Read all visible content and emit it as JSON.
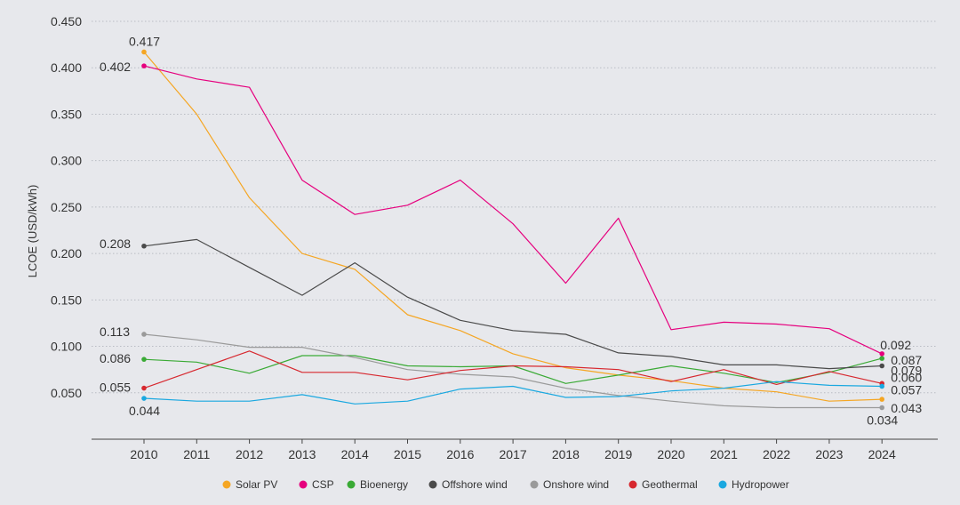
{
  "chart_data": {
    "type": "line",
    "title": "",
    "xlabel": "",
    "ylabel": "LCOE (USD/kWh)",
    "ylim": [
      0,
      0.45
    ],
    "yticks": [
      "0.450",
      "0.400",
      "0.350",
      "0.300",
      "0.250",
      "0.200",
      "0.150",
      "0.100",
      "0.050"
    ],
    "categories": [
      "2010",
      "2011",
      "2012",
      "2013",
      "2014",
      "2015",
      "2016",
      "2017",
      "2018",
      "2019",
      "2020",
      "2021",
      "2022",
      "2023",
      "2024"
    ],
    "legend_position": "bottom",
    "series": [
      {
        "name": "Solar PV",
        "color": "#f5a623",
        "values": [
          0.417,
          0.35,
          0.26,
          0.2,
          0.183,
          0.134,
          0.117,
          0.092,
          0.077,
          0.069,
          0.063,
          0.055,
          0.051,
          0.041,
          0.043
        ]
      },
      {
        "name": "CSP",
        "color": "#e6007e",
        "values": [
          0.402,
          0.388,
          0.379,
          0.279,
          0.242,
          0.252,
          0.279,
          0.232,
          0.168,
          0.238,
          0.118,
          0.126,
          0.124,
          0.119,
          0.092
        ]
      },
      {
        "name": "Bioenergy",
        "color": "#3aaa35",
        "values": [
          0.086,
          0.083,
          0.071,
          0.09,
          0.09,
          0.079,
          0.078,
          0.079,
          0.06,
          0.069,
          0.079,
          0.071,
          0.061,
          0.072,
          0.087
        ]
      },
      {
        "name": "Offshore wind",
        "color": "#4a4a4a",
        "values": [
          0.208,
          0.215,
          0.185,
          0.155,
          0.19,
          0.153,
          0.128,
          0.117,
          0.113,
          0.093,
          0.089,
          0.08,
          0.08,
          0.076,
          0.079
        ]
      },
      {
        "name": "Onshore wind",
        "color": "#9a9a9a",
        "values": [
          0.113,
          0.107,
          0.099,
          0.099,
          0.088,
          0.075,
          0.07,
          0.067,
          0.055,
          0.047,
          0.041,
          0.036,
          0.034,
          0.034,
          0.034
        ]
      },
      {
        "name": "Geothermal",
        "color": "#d7282f",
        "values": [
          0.055,
          0.075,
          0.095,
          0.072,
          0.072,
          0.064,
          0.074,
          0.079,
          0.078,
          0.075,
          0.062,
          0.075,
          0.059,
          0.073,
          0.06
        ]
      },
      {
        "name": "Hydropower",
        "color": "#1aa8e0",
        "values": [
          0.044,
          0.041,
          0.041,
          0.048,
          0.038,
          0.041,
          0.054,
          0.057,
          0.045,
          0.046,
          0.052,
          0.055,
          0.062,
          0.058,
          0.057
        ]
      }
    ],
    "annotations": [
      {
        "series": "Solar PV",
        "year": "2010",
        "label": "0.417"
      },
      {
        "series": "CSP",
        "year": "2010",
        "label": "0.402"
      },
      {
        "series": "Offshore wind",
        "year": "2010",
        "label": "0.208"
      },
      {
        "series": "Onshore wind",
        "year": "2010",
        "label": "0.113"
      },
      {
        "series": "Bioenergy",
        "year": "2010",
        "label": "0.086"
      },
      {
        "series": "Geothermal",
        "year": "2010",
        "label": "0.055"
      },
      {
        "series": "Hydropower",
        "year": "2010",
        "label": "0.044"
      },
      {
        "series": "CSP",
        "year": "2024",
        "label": "0.092"
      },
      {
        "series": "Bioenergy",
        "year": "2024",
        "label": "0.087"
      },
      {
        "series": "Offshore wind",
        "year": "2024",
        "label": "0.079"
      },
      {
        "series": "Geothermal",
        "year": "2024",
        "label": "0.060"
      },
      {
        "series": "Hydropower",
        "year": "2024",
        "label": "0.057"
      },
      {
        "series": "Solar PV",
        "year": "2024",
        "label": "0.043"
      },
      {
        "series": "Onshore wind",
        "year": "2024",
        "label": "0.034"
      }
    ]
  }
}
